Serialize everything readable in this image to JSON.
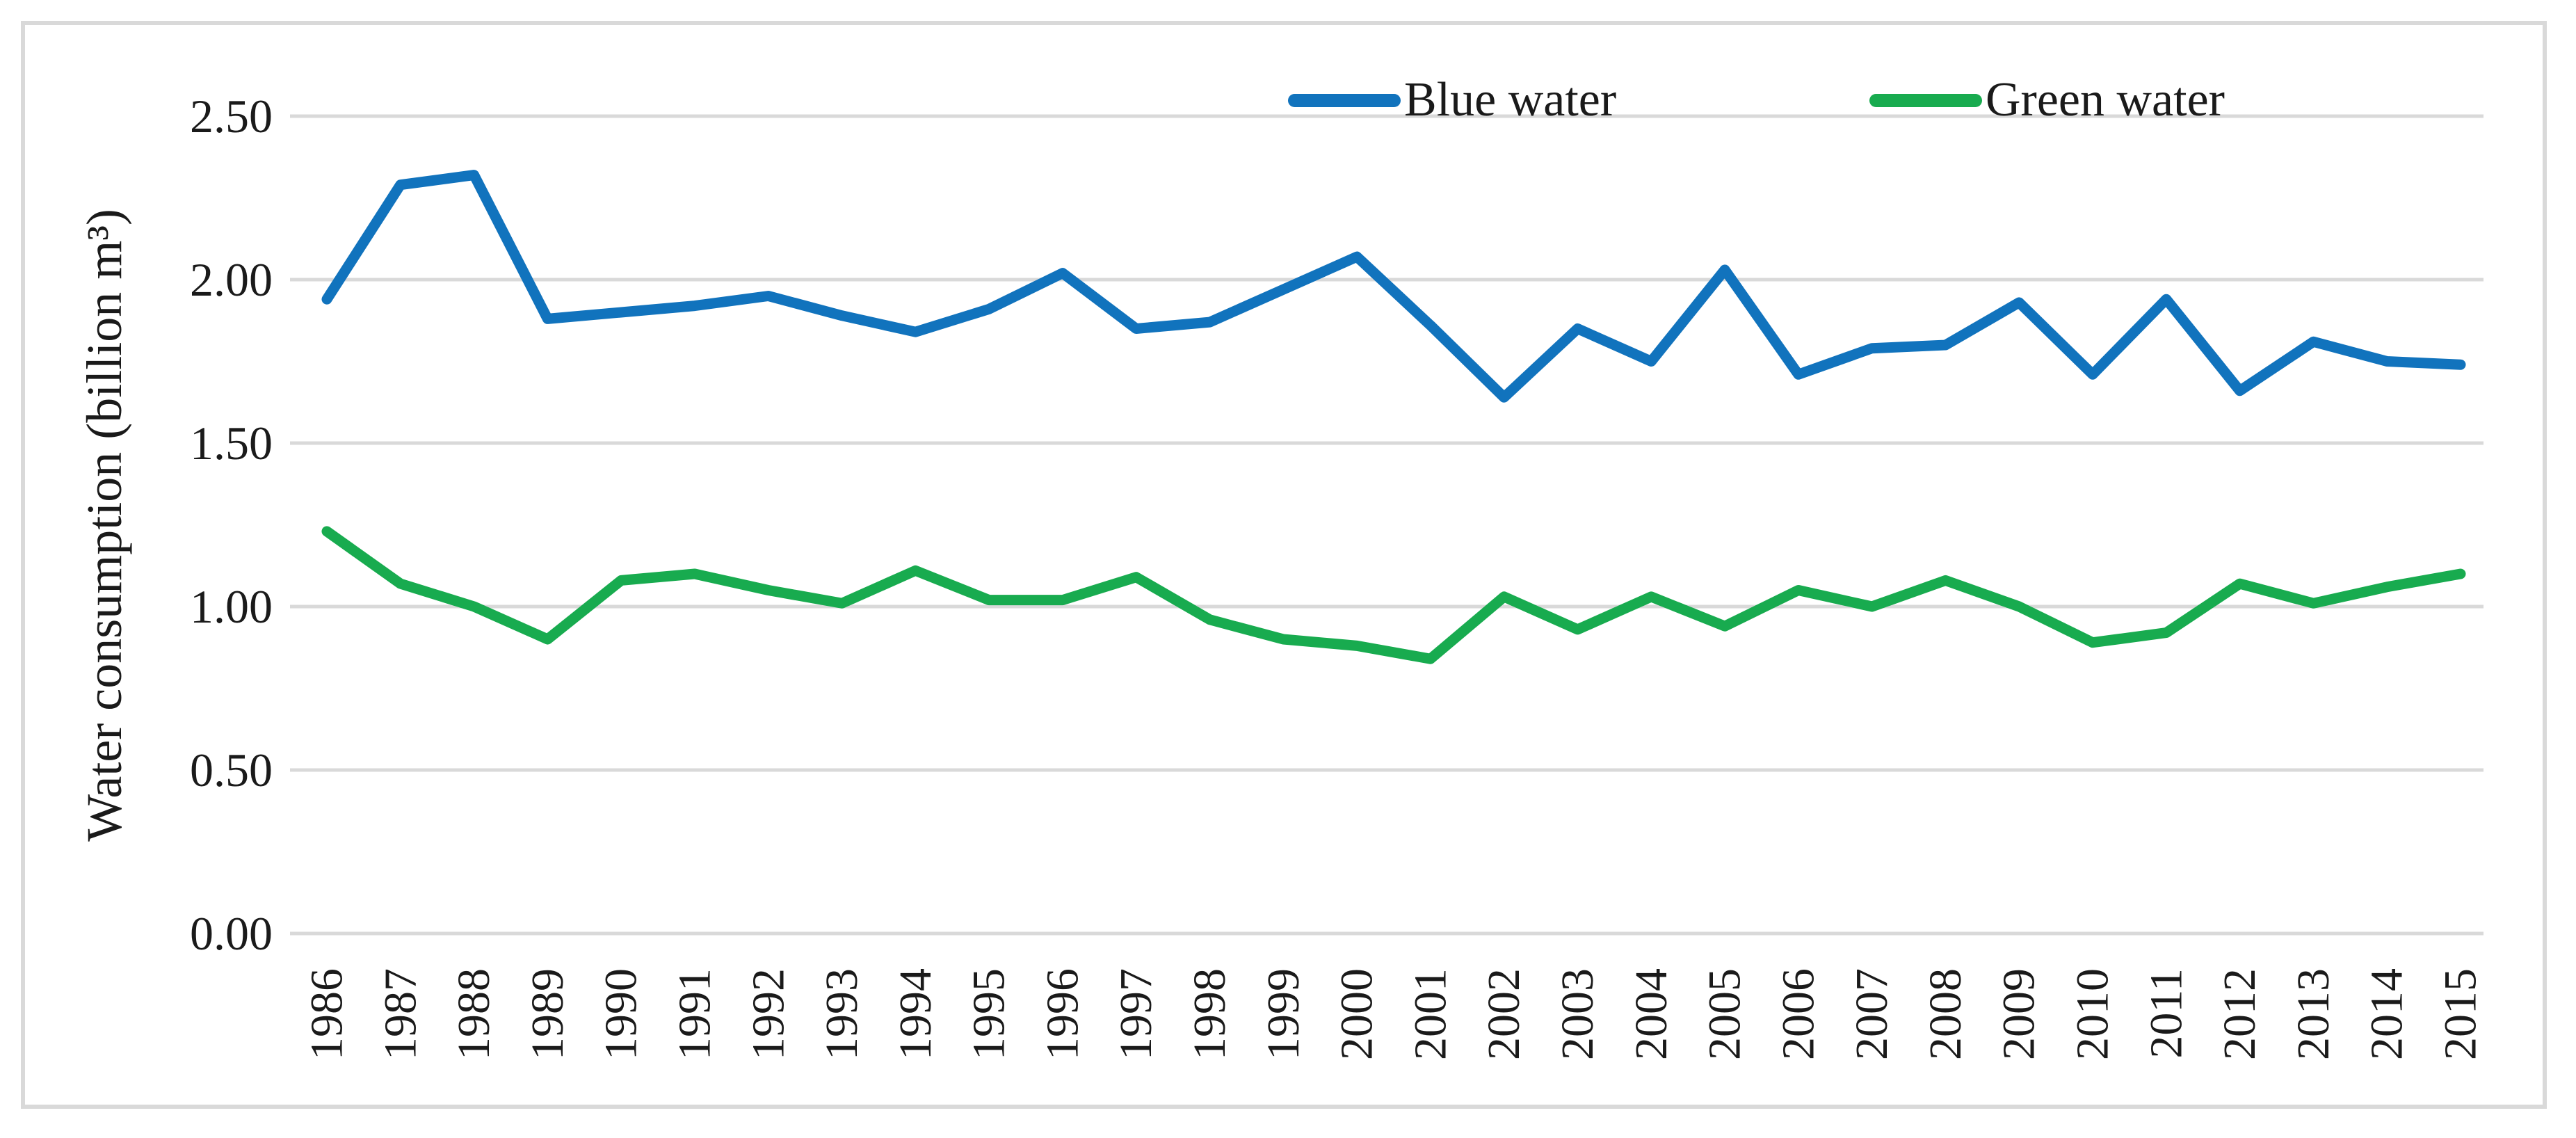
{
  "figure": {
    "background": "#FFFFFF",
    "border_color": "#D9D9D9",
    "gridline_color": "#D9D9D9",
    "text_color": "#1A1A1A"
  },
  "legend": {
    "position": "top",
    "items": [
      {
        "label": "Blue water",
        "color": "#1173BD"
      },
      {
        "label": "Green water",
        "color": "#18AB4F"
      }
    ]
  },
  "chart_data": {
    "type": "line",
    "title": "",
    "xlabel": "",
    "ylabel": "Water consumption (billion m³)",
    "ylim": [
      0,
      2.5
    ],
    "y_ticks": [
      "0.00",
      "0.50",
      "1.00",
      "1.50",
      "2.00",
      "2.50"
    ],
    "grid": "horizontal",
    "legend_position": "top",
    "categories": [
      "1986",
      "1987",
      "1988",
      "1989",
      "1990",
      "1991",
      "1992",
      "1993",
      "1994",
      "1995",
      "1996",
      "1997",
      "1998",
      "1999",
      "2000",
      "2001",
      "2002",
      "2003",
      "2004",
      "2005",
      "2006",
      "2007",
      "2008",
      "2009",
      "2010",
      "2011",
      "2012",
      "2013",
      "2014",
      "2015"
    ],
    "series": [
      {
        "name": "Blue water",
        "color": "#1173BD",
        "values": [
          1.94,
          2.29,
          2.32,
          1.88,
          1.9,
          1.92,
          1.95,
          1.89,
          1.84,
          1.91,
          2.02,
          1.85,
          1.87,
          1.97,
          2.07,
          1.86,
          1.64,
          1.85,
          1.75,
          2.03,
          1.71,
          1.79,
          1.8,
          1.93,
          1.71,
          1.94,
          1.66,
          1.81,
          1.75,
          1.74
        ]
      },
      {
        "name": "Green water",
        "color": "#18AB4F",
        "values": [
          1.23,
          1.07,
          1.0,
          0.9,
          1.08,
          1.1,
          1.05,
          1.01,
          1.11,
          1.02,
          1.02,
          1.09,
          0.96,
          0.9,
          0.88,
          0.84,
          1.03,
          0.93,
          1.03,
          0.94,
          1.05,
          1.0,
          1.08,
          1.0,
          0.89,
          0.92,
          1.07,
          1.01,
          1.06,
          1.1
        ]
      }
    ]
  }
}
